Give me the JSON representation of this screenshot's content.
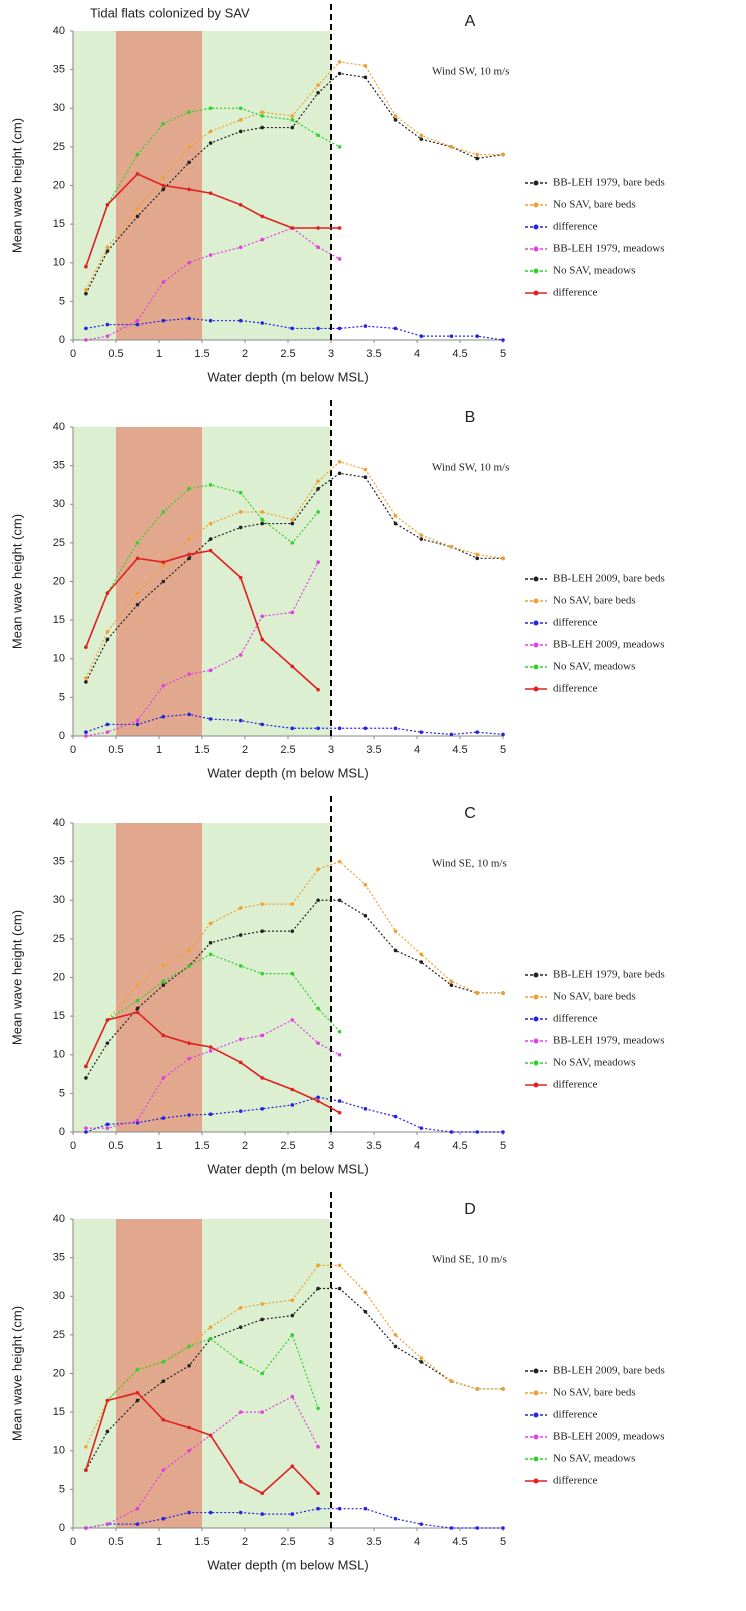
{
  "chart_data": [
    {
      "type": "line",
      "title": "A",
      "region_label": "Tidal flats colonized by SAV",
      "annotation": "Wind SW, 10 m/s",
      "x_label": "Water depth (m below MSL)",
      "y_label": "Mean wave height (cm)",
      "xlim": [
        0,
        5
      ],
      "ylim": [
        0,
        40
      ],
      "xticks": [
        0,
        0.5,
        1,
        1.5,
        2,
        2.5,
        3,
        3.5,
        4,
        4.5,
        5
      ],
      "yticks": [
        0,
        5,
        10,
        15,
        20,
        25,
        30,
        35,
        40
      ],
      "bands": [
        {
          "from": 0,
          "to": 3,
          "color": "#dcefd0"
        },
        {
          "from": 0.5,
          "to": 1.5,
          "color": "#e2a88e"
        }
      ],
      "vline": 3,
      "legend": "right",
      "x": [
        0.15,
        0.4,
        0.75,
        1.05,
        1.35,
        1.6,
        1.95,
        2.2,
        2.55,
        2.85,
        3.1,
        3.4,
        3.75,
        4.05,
        4.4,
        4.7,
        5.0
      ],
      "series": [
        {
          "name": "BB-LEH 1979, bare beds",
          "color": "#222222",
          "style": "dotted",
          "values": [
            6,
            11.5,
            16,
            19.5,
            23,
            25.5,
            27,
            27.5,
            27.5,
            32,
            34.5,
            34,
            28.5,
            26,
            25,
            23.5,
            24
          ]
        },
        {
          "name": "No SAV, bare beds",
          "color": "#f0a030",
          "style": "dotted",
          "values": [
            6.5,
            12,
            17,
            21,
            25,
            27,
            28.5,
            29.5,
            29,
            33,
            36,
            35.5,
            29,
            26.5,
            25,
            24,
            24
          ]
        },
        {
          "name": "difference",
          "color": "#2424e0",
          "style": "dotted",
          "values": [
            1.5,
            2,
            2,
            2.5,
            2.8,
            2.5,
            2.5,
            2.2,
            1.5,
            1.5,
            1.5,
            1.8,
            1.5,
            0.5,
            0.5,
            0.5,
            0
          ]
        },
        {
          "name": "BB-LEH 1979, meadows",
          "color": "#e040e0",
          "style": "dotted",
          "values": [
            0,
            0.5,
            2.5,
            7.5,
            10,
            11,
            12,
            13,
            14.5,
            12,
            10.5,
            null,
            null,
            null,
            null,
            null,
            null
          ]
        },
        {
          "name": "No SAV,  meadows",
          "color": "#30d030",
          "style": "dotted",
          "values": [
            9.5,
            17.5,
            24,
            28,
            29.5,
            30,
            30,
            29,
            28.5,
            26.5,
            25,
            null,
            null,
            null,
            null,
            null,
            null
          ]
        },
        {
          "name": "difference",
          "color": "#e02020",
          "style": "solid",
          "values": [
            9.5,
            17.5,
            21.5,
            20,
            19.5,
            19,
            17.5,
            16,
            14.5,
            14.5,
            14.5,
            null,
            null,
            null,
            null,
            null,
            null
          ]
        }
      ]
    },
    {
      "type": "line",
      "title": "B",
      "annotation": "Wind SW, 10 m/s",
      "x_label": "Water depth (m below MSL)",
      "y_label": "Mean wave height (cm)",
      "xlim": [
        0,
        5
      ],
      "ylim": [
        0,
        40
      ],
      "xticks": [
        0,
        0.5,
        1,
        1.5,
        2,
        2.5,
        3,
        3.5,
        4,
        4.5,
        5
      ],
      "yticks": [
        0,
        5,
        10,
        15,
        20,
        25,
        30,
        35,
        40
      ],
      "bands": [
        {
          "from": 0,
          "to": 3,
          "color": "#dcefd0"
        },
        {
          "from": 0.5,
          "to": 1.5,
          "color": "#e2a88e"
        }
      ],
      "vline": 3,
      "legend": "right",
      "x": [
        0.15,
        0.4,
        0.75,
        1.05,
        1.35,
        1.6,
        1.95,
        2.2,
        2.55,
        2.85,
        3.1,
        3.4,
        3.75,
        4.05,
        4.4,
        4.7,
        5.0
      ],
      "series": [
        {
          "name": "BB-LEH 2009, bare beds",
          "color": "#222222",
          "style": "dotted",
          "values": [
            7,
            12.5,
            17,
            20,
            23,
            25.5,
            27,
            27.5,
            27.5,
            32,
            34,
            33.5,
            27.5,
            25.5,
            24.5,
            23,
            23
          ]
        },
        {
          "name": "No SAV, bare beds",
          "color": "#f0a030",
          "style": "dotted",
          "values": [
            7.5,
            13.5,
            18.5,
            22,
            25.5,
            27.5,
            29,
            29,
            28,
            33,
            35.5,
            34.5,
            28.5,
            26,
            24.5,
            23.5,
            23
          ]
        },
        {
          "name": "difference",
          "color": "#2424e0",
          "style": "dotted",
          "values": [
            0.5,
            1.5,
            1.5,
            2.5,
            2.8,
            2.2,
            2,
            1.5,
            1,
            1,
            1,
            1,
            1,
            0.5,
            0.2,
            0.5,
            0.2
          ]
        },
        {
          "name": "BB-LEH 2009, meadows",
          "color": "#e040e0",
          "style": "dotted",
          "values": [
            0,
            0.5,
            2,
            6.5,
            8,
            8.5,
            10.5,
            15.5,
            16,
            22.5,
            null,
            null,
            null,
            null,
            null,
            null,
            null
          ]
        },
        {
          "name": "No SAV,  meadows",
          "color": "#30d030",
          "style": "dotted",
          "values": [
            11.5,
            18.5,
            25,
            29,
            32,
            32.5,
            31.5,
            28,
            25,
            29,
            null,
            null,
            null,
            null,
            null,
            null,
            null
          ]
        },
        {
          "name": "difference",
          "color": "#e02020",
          "style": "solid",
          "values": [
            11.5,
            18.5,
            23,
            22.5,
            23.5,
            24,
            20.5,
            12.5,
            9,
            6,
            null,
            null,
            null,
            null,
            null,
            null,
            null
          ]
        }
      ]
    },
    {
      "type": "line",
      "title": "C",
      "annotation": "Wind SE, 10 m/s",
      "x_label": "Water depth (m below MSL)",
      "y_label": "Mean wave height (cm)",
      "xlim": [
        0,
        5
      ],
      "ylim": [
        0,
        40
      ],
      "xticks": [
        0,
        0.5,
        1,
        1.5,
        2,
        2.5,
        3,
        3.5,
        4,
        4.5,
        5
      ],
      "yticks": [
        0,
        5,
        10,
        15,
        20,
        25,
        30,
        35,
        40
      ],
      "bands": [
        {
          "from": 0,
          "to": 3,
          "color": "#dcefd0"
        },
        {
          "from": 0.5,
          "to": 1.5,
          "color": "#e2a88e"
        }
      ],
      "vline": 3,
      "legend": "right",
      "x": [
        0.15,
        0.4,
        0.75,
        1.05,
        1.35,
        1.6,
        1.95,
        2.2,
        2.55,
        2.85,
        3.1,
        3.4,
        3.75,
        4.05,
        4.4,
        4.7,
        5.0
      ],
      "series": [
        {
          "name": "BB-LEH 1979, bare beds",
          "color": "#222222",
          "style": "dotted",
          "values": [
            7,
            11.5,
            16,
            19,
            21.5,
            24.5,
            25.5,
            26,
            26,
            30,
            30,
            28,
            23.5,
            22,
            19,
            18,
            18
          ]
        },
        {
          "name": "No SAV, bare beds",
          "color": "#f0a030",
          "style": "dotted",
          "values": [
            8.5,
            14.5,
            19,
            21.5,
            23.5,
            27,
            29,
            29.5,
            29.5,
            34,
            35,
            32,
            26,
            23,
            19.5,
            18,
            18
          ]
        },
        {
          "name": "difference",
          "color": "#2424e0",
          "style": "dotted",
          "values": [
            0,
            1,
            1.2,
            1.8,
            2.2,
            2.3,
            2.7,
            3,
            3.5,
            4.5,
            4,
            3,
            2,
            0.5,
            0,
            0,
            0
          ]
        },
        {
          "name": "BB-LEH 1979, meadows",
          "color": "#e040e0",
          "style": "dotted",
          "values": [
            0.5,
            0.5,
            1.5,
            7,
            9.5,
            10.5,
            12,
            12.5,
            14.5,
            11.5,
            10,
            null,
            null,
            null,
            null,
            null,
            null
          ]
        },
        {
          "name": "No SAV,  meadows",
          "color": "#30d030",
          "style": "dotted",
          "values": [
            8.5,
            14.5,
            17,
            19.5,
            21.5,
            23,
            21.5,
            20.5,
            20.5,
            16,
            13,
            null,
            null,
            null,
            null,
            null,
            null
          ]
        },
        {
          "name": "difference",
          "color": "#e02020",
          "style": "solid",
          "values": [
            8.5,
            14.5,
            15.5,
            12.5,
            11.5,
            11,
            9,
            7,
            5.5,
            4,
            2.5,
            null,
            null,
            null,
            null,
            null,
            null
          ]
        }
      ]
    },
    {
      "type": "line",
      "title": "D",
      "annotation": "Wind SE, 10 m/s",
      "x_label": "Water depth (m below MSL)",
      "y_label": "Mean wave height (cm)",
      "xlim": [
        0,
        5
      ],
      "ylim": [
        0,
        40
      ],
      "xticks": [
        0,
        0.5,
        1,
        1.5,
        2,
        2.5,
        3,
        3.5,
        4,
        4.5,
        5
      ],
      "yticks": [
        0,
        5,
        10,
        15,
        20,
        25,
        30,
        35,
        40
      ],
      "bands": [
        {
          "from": 0,
          "to": 3,
          "color": "#dcefd0"
        },
        {
          "from": 0.5,
          "to": 1.5,
          "color": "#e2a88e"
        }
      ],
      "vline": 3,
      "legend": "right",
      "x": [
        0.15,
        0.4,
        0.75,
        1.05,
        1.35,
        1.6,
        1.95,
        2.2,
        2.55,
        2.85,
        3.1,
        3.4,
        3.75,
        4.05,
        4.4,
        4.7,
        5.0
      ],
      "series": [
        {
          "name": "BB-LEH 2009, bare beds",
          "color": "#222222",
          "style": "dotted",
          "values": [
            7.5,
            12.5,
            16.5,
            19,
            21,
            24.5,
            26,
            27,
            27.5,
            31,
            31,
            28,
            23.5,
            21.5,
            19,
            18,
            18
          ]
        },
        {
          "name": "No SAV, bare beds",
          "color": "#f0a030",
          "style": "dotted",
          "values": [
            10.5,
            16.5,
            20.5,
            21.5,
            23.5,
            26,
            28.5,
            29,
            29.5,
            34,
            34,
            30.5,
            25,
            22,
            19,
            18,
            18
          ]
        },
        {
          "name": "difference",
          "color": "#2424e0",
          "style": "dotted",
          "values": [
            0,
            0.5,
            0.5,
            1.2,
            2,
            2,
            2,
            1.8,
            1.8,
            2.5,
            2.5,
            2.5,
            1.2,
            0.5,
            0,
            0,
            0
          ]
        },
        {
          "name": "BB-LEH 2009, meadows",
          "color": "#e040e0",
          "style": "dotted",
          "values": [
            0,
            0.5,
            2.5,
            7.5,
            10,
            12,
            15,
            15,
            17,
            10.5,
            null,
            null,
            null,
            null,
            null,
            null,
            null
          ]
        },
        {
          "name": "No SAV,  meadows",
          "color": "#30d030",
          "style": "dotted",
          "values": [
            7.5,
            16.5,
            20.5,
            21.5,
            23.5,
            24.5,
            21.5,
            20,
            25,
            15.5,
            null,
            null,
            null,
            null,
            null,
            null,
            null
          ]
        },
        {
          "name": "difference",
          "color": "#e02020",
          "style": "solid",
          "values": [
            7.5,
            16.5,
            17.5,
            14,
            13,
            12,
            6,
            4.5,
            8,
            4.5,
            null,
            null,
            null,
            null,
            null,
            null,
            null
          ]
        }
      ]
    }
  ]
}
